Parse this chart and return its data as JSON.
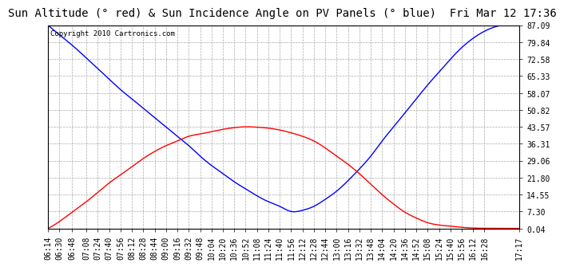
{
  "title": "Sun Altitude (° red) & Sun Incidence Angle on PV Panels (° blue)  Fri Mar 12 17:36",
  "copyright_text": "Copyright 2010 Cartronics.com",
  "yticks": [
    0.04,
    7.3,
    14.55,
    21.8,
    29.06,
    36.31,
    43.57,
    50.82,
    58.07,
    65.33,
    72.58,
    79.84,
    87.09
  ],
  "ylim": [
    0.04,
    87.09
  ],
  "xtick_labels": [
    "06:14",
    "06:30",
    "06:48",
    "07:08",
    "07:24",
    "07:40",
    "07:56",
    "08:12",
    "08:28",
    "08:44",
    "09:00",
    "09:16",
    "09:32",
    "09:48",
    "10:04",
    "10:20",
    "10:36",
    "10:52",
    "11:08",
    "11:24",
    "11:40",
    "11:56",
    "12:12",
    "12:28",
    "12:44",
    "13:00",
    "13:16",
    "13:32",
    "13:48",
    "14:04",
    "14:20",
    "14:36",
    "14:52",
    "15:08",
    "15:24",
    "15:40",
    "15:56",
    "16:12",
    "16:28",
    "17:17"
  ],
  "bg_color": "#ffffff",
  "plot_bg_color": "#ffffff",
  "grid_color": "#aaaaaa",
  "blue_color": "#0000ff",
  "red_color": "#ff0000",
  "title_fontsize": 10,
  "tick_fontsize": 7,
  "copyright_fontsize": 6.5,
  "blue_x_minutes": [
    374,
    390,
    408,
    428,
    444,
    460,
    476,
    492,
    508,
    524,
    540,
    556,
    572,
    588,
    604,
    620,
    636,
    652,
    668,
    684,
    700,
    716,
    732,
    748,
    764,
    780,
    796,
    812,
    828,
    844,
    860,
    876,
    892,
    908,
    924,
    940,
    956,
    972,
    988,
    1037
  ],
  "blue_y_values": [
    87.09,
    83.0,
    78.5,
    73.0,
    68.5,
    64.0,
    59.5,
    55.5,
    51.5,
    47.5,
    43.5,
    39.5,
    35.5,
    31.0,
    27.0,
    23.5,
    20.0,
    17.0,
    14.0,
    11.5,
    9.5,
    7.3,
    7.8,
    9.5,
    12.5,
    16.0,
    20.5,
    25.5,
    31.0,
    37.5,
    43.5,
    49.5,
    55.5,
    61.5,
    67.0,
    72.5,
    77.5,
    81.5,
    84.5,
    87.09
  ],
  "red_x_minutes": [
    374,
    390,
    408,
    428,
    444,
    460,
    476,
    492,
    508,
    524,
    540,
    556,
    572,
    588,
    604,
    620,
    636,
    652,
    668,
    684,
    700,
    716,
    732,
    748,
    764,
    780,
    796,
    812,
    828,
    844,
    860,
    876,
    892,
    908,
    924,
    940,
    956,
    972,
    988,
    1037
  ],
  "red_y_values": [
    0.04,
    3.0,
    7.0,
    11.5,
    15.5,
    19.5,
    23.0,
    26.5,
    30.0,
    33.0,
    35.5,
    37.5,
    39.5,
    40.5,
    41.5,
    42.5,
    43.2,
    43.57,
    43.4,
    43.0,
    42.2,
    41.0,
    39.5,
    37.5,
    34.5,
    31.0,
    27.5,
    23.5,
    19.0,
    14.5,
    10.5,
    7.0,
    4.5,
    2.5,
    1.5,
    1.0,
    0.5,
    0.2,
    0.1,
    0.04
  ]
}
